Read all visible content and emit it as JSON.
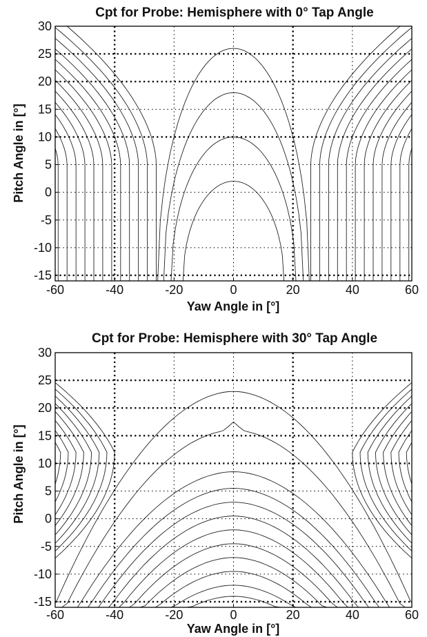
{
  "chart_data": [
    {
      "type": "contour",
      "title": "Cpt for Probe: Hemisphere with 0° Tap Angle",
      "xlabel": "Yaw Angle in [°]",
      "ylabel": "Pitch Angle in [°]",
      "xlim": [
        -60,
        60
      ],
      "ylim": [
        -16,
        30
      ],
      "xticks": [
        "-60",
        "-40",
        "-20",
        "0",
        "20",
        "40",
        "60"
      ],
      "yticks": [
        "30",
        "25",
        "20",
        "15",
        "10",
        "5",
        "0",
        "-5",
        "-10",
        "-15"
      ],
      "grid": true,
      "contour_family": "nested arches centred at yaw 0",
      "contour_apex_pitch": [
        2,
        10,
        18,
        26
      ],
      "contour_base_yaw_halfwidth": [
        17,
        21,
        23.5,
        25.5
      ],
      "side_contours_base_yaw": [
        26,
        29,
        32,
        35,
        38,
        41,
        44,
        47,
        50,
        53,
        56,
        59
      ]
    },
    {
      "type": "contour",
      "title": "Cpt for Probe: Hemisphere with 30° Tap Angle",
      "xlabel": "Yaw Angle in [°]",
      "ylabel": "Pitch Angle in [°]",
      "xlim": [
        -60,
        60
      ],
      "ylim": [
        -16,
        30
      ],
      "xticks": [
        "-60",
        "-40",
        "-20",
        "0",
        "20",
        "40",
        "60"
      ],
      "yticks": [
        "30",
        "25",
        "20",
        "15",
        "10",
        "5",
        "0",
        "-5",
        "-10",
        "-15"
      ],
      "grid": true,
      "contour_family": "nested arches centred at yaw 0 with lobes near pitch 12",
      "contour_apex_pitch": [
        -14,
        -12,
        -9.5,
        -7,
        -4.5,
        -2,
        0.5,
        3,
        5.5,
        8.5,
        16,
        23
      ],
      "side_lobe_centre_pitch": 12
    }
  ]
}
